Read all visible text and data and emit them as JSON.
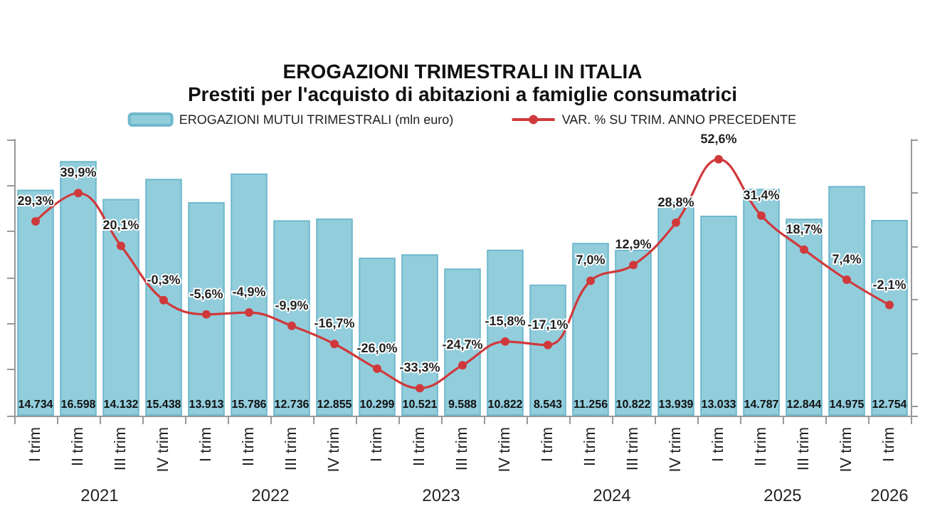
{
  "chart_data": {
    "type": "bar",
    "title": "EROGAZIONI TRIMESTRALI IN ITALIA",
    "subtitle": "Prestiti per l'acquisto di abitazioni a famiglie consumatrici",
    "categories": [
      "I trim",
      "II trim",
      "III trim",
      "IV trim",
      "I trim",
      "II trim",
      "III trim",
      "IV trim",
      "I trim",
      "II trim",
      "III trim",
      "IV trim",
      "I trim",
      "II trim",
      "III trim",
      "IV trim",
      "I trim",
      "II trim",
      "III trim",
      "IV trim",
      "I trim"
    ],
    "annotations": [
      "2021",
      "2022",
      "2023",
      "2024",
      "2025",
      "2026"
    ],
    "series": [
      {
        "name": "EROGAZIONI MUTUI TRIMESTRALI (mln euro)",
        "type": "bar",
        "color": "#92cddc",
        "values": [
          14734,
          16598,
          14132,
          15438,
          13913,
          15786,
          12736,
          12855,
          10299,
          10521,
          9588,
          10822,
          8543,
          11256,
          10822,
          13939,
          13033,
          14787,
          12844,
          14975,
          12754
        ],
        "value_labels": [
          "14.734",
          "16.598",
          "14.132",
          "15.438",
          "13.913",
          "15.786",
          "12.736",
          "12.855",
          "10.299",
          "10.521",
          "9.588",
          "10.822",
          "8.543",
          "11.256",
          "10.822",
          "13.939",
          "13.033",
          "14.787",
          "12.844",
          "14.975",
          "12.754"
        ]
      },
      {
        "name": "VAR. % SU TRIM. ANNO PRECEDENTE",
        "type": "line",
        "axis": "y2",
        "color": "#d0393b",
        "values": [
          29.3,
          39.9,
          20.1,
          -0.3,
          -5.6,
          -4.9,
          -9.9,
          -16.7,
          -26.0,
          -33.3,
          -24.7,
          -15.8,
          -17.1,
          7.0,
          12.9,
          28.8,
          52.6,
          31.4,
          18.7,
          7.4,
          -2.1
        ],
        "value_labels": [
          "29,3%",
          "39,9%",
          "20,1%",
          "-0,3%",
          "-5,6%",
          "-4,9%",
          "-9,9%",
          "-16,7%",
          "-26,0%",
          "-33,3%",
          "-24,7%",
          "-15,8%",
          "-17,1%",
          "7,0%",
          "12,9%",
          "28,8%",
          "52,6%",
          "31,4%",
          "18,7%",
          "7,4%",
          "-2,1%"
        ]
      }
    ],
    "legend": "top",
    "grid": false,
    "marker": "circle",
    "line_style": "solid",
    "tick_labels": "x"
  }
}
